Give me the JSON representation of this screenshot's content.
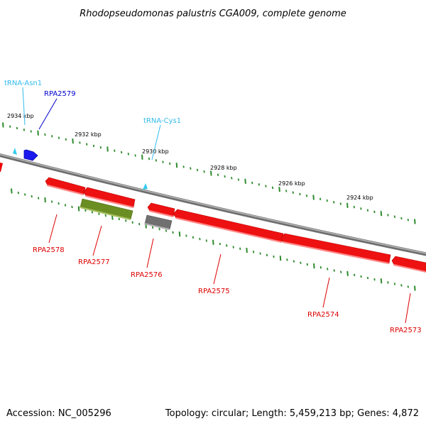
{
  "title": "Rhodopseudomonas palustris CGA009, complete genome",
  "footer": {
    "accession": "Accession: NC_005296",
    "summary": "Topology: circular; Length: 5,459,213 bp; Genes: 4,872"
  },
  "colors": {
    "background": "#ffffff",
    "backbone": "#8c8c8c",
    "tick": "#2e8b2e",
    "gene_forward": "#0000dd",
    "gene_reverse": "#ee0000",
    "gene_reverse_light": "#ff7777",
    "gene_other": "#6b8e23",
    "gene_pseudo": "#777777",
    "trna": "#33ccee",
    "label_forward": "#0000cc",
    "label_reverse": "#dd0000",
    "label_trna": "#33bbee"
  },
  "ruler": {
    "labels": [
      "2934 kbp",
      "2932 kbp",
      "2930 kbp",
      "2928 kbp",
      "2926 kbp",
      "2924 kbp"
    ]
  },
  "features": {
    "trna_asn1": {
      "label": "tRNA-Asn1",
      "strand": "+",
      "type": "tRNA"
    },
    "rpa2579": {
      "label": "RPA2579",
      "strand": "+",
      "type": "CDS"
    },
    "trna_cys1": {
      "label": "tRNA-Cys1",
      "strand": "+",
      "type": "tRNA"
    },
    "rpa2578": {
      "label": "RPA2578",
      "strand": "-",
      "type": "CDS"
    },
    "rpa2577": {
      "label": "RPA2577",
      "strand": "-",
      "type": "CDS"
    },
    "rpa2576": {
      "label": "RPA2576",
      "strand": "-",
      "type": "CDS"
    },
    "rpa2575": {
      "label": "RPA2575",
      "strand": "-",
      "type": "CDS"
    },
    "rpa2574": {
      "label": "RPA2574",
      "strand": "-",
      "type": "CDS"
    },
    "rpa2573": {
      "label": "RPA2573",
      "strand": "-",
      "type": "CDS"
    }
  }
}
